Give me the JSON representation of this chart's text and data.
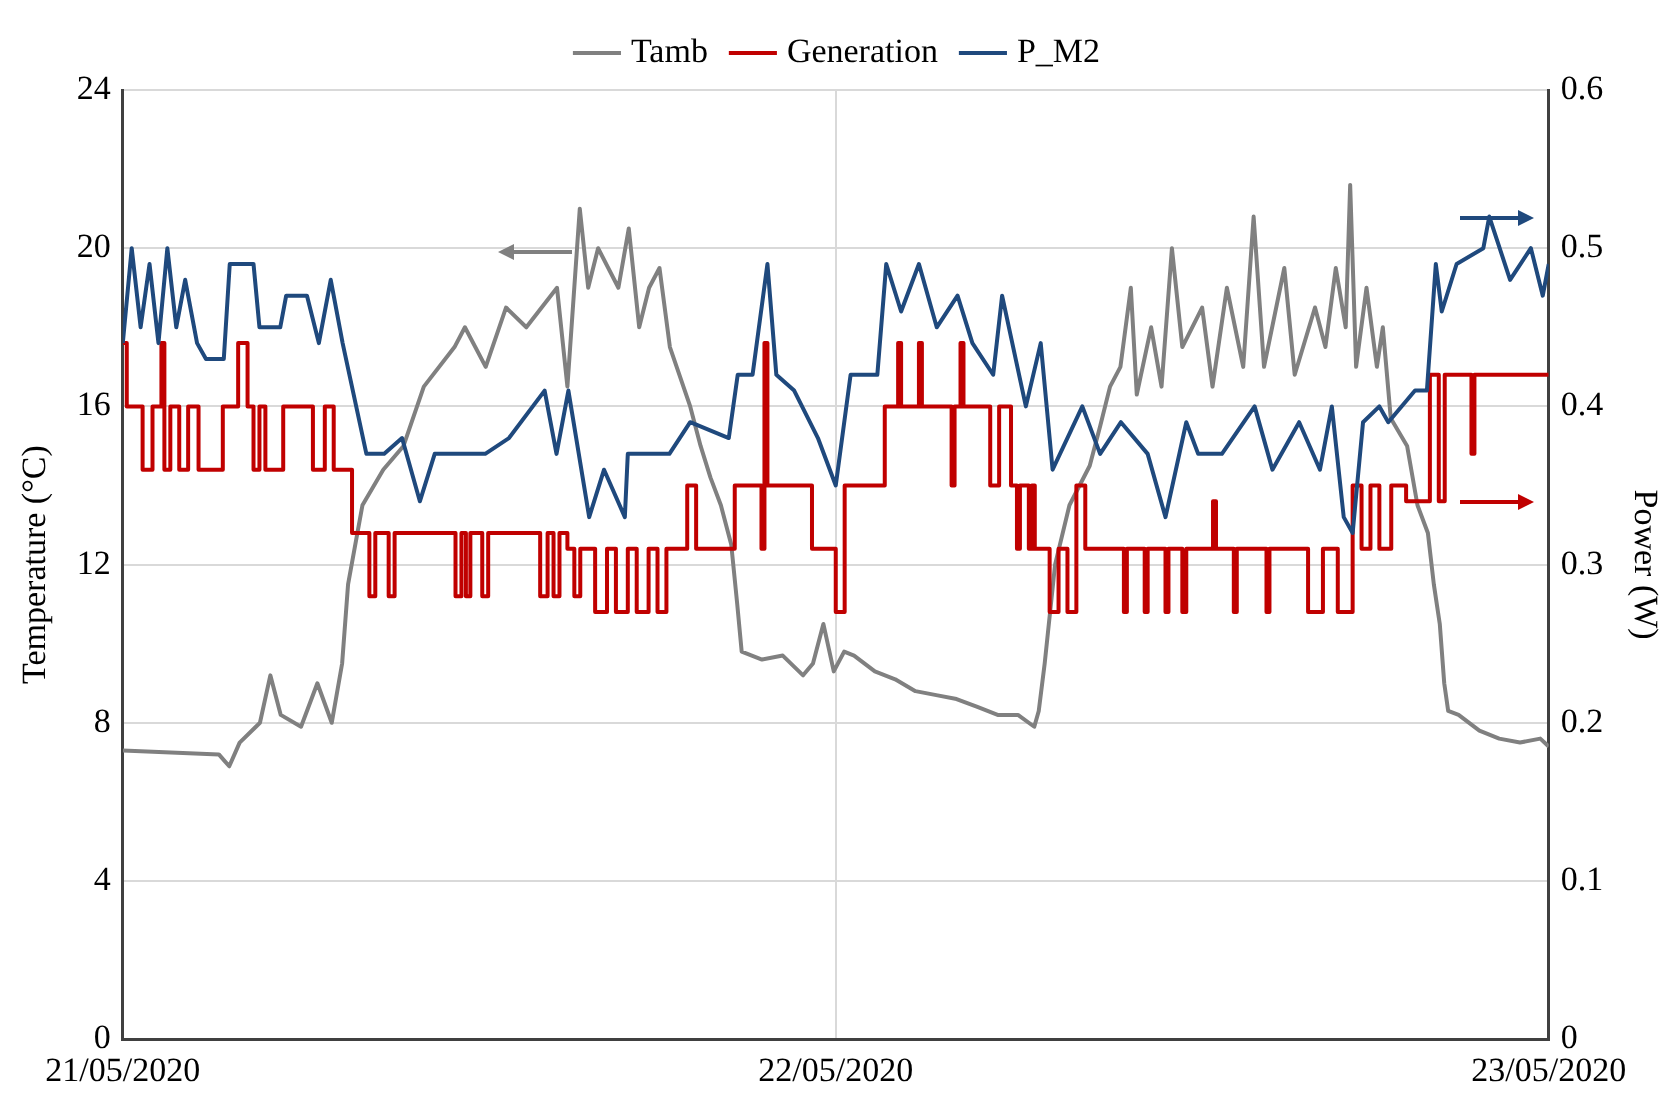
{
  "chart_data": {
    "type": "line",
    "ylabel": "Temperature (°C)",
    "y2label": "Power (W)",
    "legend": "top",
    "grid": true,
    "marker": "none",
    "line_style": "solid",
    "xlim": [
      "2020-05-21",
      "2020-05-23"
    ],
    "xticks": [
      {
        "value": "2020-05-21",
        "label": "21/05/2020"
      },
      {
        "value": "2020-05-22",
        "label": "22/05/2020"
      },
      {
        "value": "2020-05-23",
        "label": "23/05/2020"
      }
    ],
    "ylim": [
      0,
      24
    ],
    "yticks": [
      0,
      4,
      8,
      12,
      16,
      20,
      24
    ],
    "y2lim": [
      0,
      0.6
    ],
    "y2ticks": [
      0,
      0.1,
      0.2,
      0.3,
      0.4,
      0.5,
      0.6
    ],
    "series": [
      {
        "name": "Tamb",
        "color": "#808080",
        "type": "line",
        "x": [
          "2020-05-21T00:00",
          "2020-05-21T03:14",
          "2020-05-21T03:35",
          "2020-05-21T03:56",
          "2020-05-21T04:37",
          "2020-05-21T04:58",
          "2020-05-21T05:19",
          "2020-05-21T06:00",
          "2020-05-21T06:33",
          "2020-05-21T07:02",
          "2020-05-21T07:23",
          "2020-05-21T07:35",
          "2020-05-21T08:04",
          "2020-05-21T08:46",
          "2020-05-21T09:27",
          "2020-05-21T10:08",
          "2020-05-21T11:10",
          "2020-05-21T11:31",
          "2020-05-21T12:13",
          "2020-05-21T12:54",
          "2020-05-21T13:35",
          "2020-05-21T14:37",
          "2020-05-21T14:58",
          "2020-05-21T15:23",
          "2020-05-21T15:40",
          "2020-05-21T16:00",
          "2020-05-21T16:41",
          "2020-05-21T17:02",
          "2020-05-21T17:23",
          "2020-05-21T17:43",
          "2020-05-21T18:04",
          "2020-05-21T18:25",
          "2020-05-21T19:06",
          "2020-05-21T19:27",
          "2020-05-21T19:47",
          "2020-05-21T20:08",
          "2020-05-21T20:29",
          "2020-05-21T20:41",
          "2020-05-21T20:50",
          "2020-05-21T21:31",
          "2020-05-21T22:13",
          "2020-05-21T22:54",
          "2020-05-21T23:14",
          "2020-05-21T23:35",
          "2020-05-21T23:56",
          "2020-05-22T00:17",
          "2020-05-22T00:37",
          "2020-05-22T01:19",
          "2020-05-22T02:00",
          "2020-05-22T02:41",
          "2020-05-22T03:23",
          "2020-05-22T04:04",
          "2020-05-22T04:46",
          "2020-05-22T05:27",
          "2020-05-22T06:08",
          "2020-05-22T06:41",
          "2020-05-22T06:50",
          "2020-05-22T07:02",
          "2020-05-22T07:23",
          "2020-05-22T07:52",
          "2020-05-22T08:33",
          "2020-05-22T08:54",
          "2020-05-22T09:14",
          "2020-05-22T09:35",
          "2020-05-22T09:56",
          "2020-05-22T10:08",
          "2020-05-22T10:37",
          "2020-05-22T10:58",
          "2020-05-22T11:19",
          "2020-05-22T11:40",
          "2020-05-22T12:20",
          "2020-05-22T12:41",
          "2020-05-22T13:10",
          "2020-05-22T13:43",
          "2020-05-22T14:04",
          "2020-05-22T14:25",
          "2020-05-22T15:06",
          "2020-05-22T15:27",
          "2020-05-22T16:08",
          "2020-05-22T16:29",
          "2020-05-22T16:50",
          "2020-05-22T17:10",
          "2020-05-22T17:19",
          "2020-05-22T17:31",
          "2020-05-22T17:52",
          "2020-05-22T18:13",
          "2020-05-22T18:25",
          "2020-05-22T18:41",
          "2020-05-22T19:14",
          "2020-05-22T19:35",
          "2020-05-22T19:56",
          "2020-05-22T20:08",
          "2020-05-22T20:20",
          "2020-05-22T20:29",
          "2020-05-22T20:37",
          "2020-05-22T20:58",
          "2020-05-22T21:40",
          "2020-05-22T22:20",
          "2020-05-22T23:02",
          "2020-05-22T23:43",
          "2020-05-23T00:00"
        ],
        "values": [
          7.3,
          7.2,
          6.9,
          7.5,
          8.0,
          9.2,
          8.2,
          7.9,
          9.0,
          8.0,
          9.5,
          11.5,
          13.5,
          14.4,
          15.0,
          16.5,
          17.5,
          18.0,
          17.0,
          18.5,
          18.0,
          19.0,
          16.5,
          21.0,
          19.0,
          20.0,
          19.0,
          20.5,
          18.0,
          19.0,
          19.5,
          17.5,
          16.0,
          15.0,
          14.2,
          13.5,
          12.5,
          11.0,
          9.8,
          9.6,
          9.7,
          9.2,
          9.5,
          10.5,
          9.3,
          9.8,
          9.7,
          9.3,
          9.1,
          8.8,
          8.7,
          8.6,
          8.4,
          8.2,
          8.2,
          7.9,
          8.3,
          9.5,
          12.0,
          13.5,
          14.5,
          15.5,
          16.5,
          17.0,
          19.0,
          16.3,
          18.0,
          16.5,
          20.0,
          17.5,
          18.5,
          16.5,
          19.0,
          17.0,
          20.8,
          17.0,
          19.5,
          16.8,
          18.5,
          17.5,
          19.5,
          18.0,
          21.6,
          17.0,
          19.0,
          17.0,
          18.0,
          15.7,
          15.0,
          13.5,
          12.8,
          11.5,
          10.5,
          9.0,
          8.3,
          8.2,
          7.8,
          7.6,
          7.5,
          7.6,
          7.4
        ]
      },
      {
        "name": "Generation",
        "color": "#c00000",
        "type": "step",
        "axis": "y2",
        "x": [
          "2020-05-21T00:00",
          "2020-05-21T00:08",
          "2020-05-21T00:40",
          "2020-05-21T01:00",
          "2020-05-21T01:18",
          "2020-05-21T01:24",
          "2020-05-21T01:36",
          "2020-05-21T01:54",
          "2020-05-21T02:12",
          "2020-05-21T02:33",
          "2020-05-21T03:22",
          "2020-05-21T03:53",
          "2020-05-21T04:12",
          "2020-05-21T04:24",
          "2020-05-21T04:36",
          "2020-05-21T04:48",
          "2020-05-21T05:24",
          "2020-05-21T06:24",
          "2020-05-21T06:48",
          "2020-05-21T07:06",
          "2020-05-21T07:43",
          "2020-05-21T08:18",
          "2020-05-21T08:30",
          "2020-05-21T08:57",
          "2020-05-21T09:09",
          "2020-05-21T11:12",
          "2020-05-21T11:24",
          "2020-05-21T11:33",
          "2020-05-21T11:42",
          "2020-05-21T12:06",
          "2020-05-21T12:18",
          "2020-05-21T14:03",
          "2020-05-21T14:18",
          "2020-05-21T14:30",
          "2020-05-21T14:42",
          "2020-05-21T14:58",
          "2020-05-21T15:12",
          "2020-05-21T15:24",
          "2020-05-21T15:54",
          "2020-05-21T16:18",
          "2020-05-21T16:36",
          "2020-05-21T17:00",
          "2020-05-21T17:18",
          "2020-05-21T17:42",
          "2020-05-21T18:00",
          "2020-05-21T18:18",
          "2020-05-21T19:00",
          "2020-05-21T19:18",
          "2020-05-21T20:36",
          "2020-05-21T21:30",
          "2020-05-21T21:36",
          "2020-05-21T21:42",
          "2020-05-21T23:12",
          "2020-05-22T00:00",
          "2020-05-22T00:18",
          "2020-05-22T01:39",
          "2020-05-22T02:06",
          "2020-05-22T02:12",
          "2020-05-22T02:48",
          "2020-05-22T02:54",
          "2020-05-22T03:54",
          "2020-05-22T04:00",
          "2020-05-22T04:12",
          "2020-05-22T04:18",
          "2020-05-22T05:12",
          "2020-05-22T05:30",
          "2020-05-22T05:54",
          "2020-05-22T06:06",
          "2020-05-22T06:12",
          "2020-05-22T06:30",
          "2020-05-22T06:36",
          "2020-05-22T06:42",
          "2020-05-22T07:12",
          "2020-05-22T07:30",
          "2020-05-22T07:48",
          "2020-05-22T08:06",
          "2020-05-22T08:24",
          "2020-05-22T09:42",
          "2020-05-22T09:48",
          "2020-05-22T10:24",
          "2020-05-22T10:30",
          "2020-05-22T11:06",
          "2020-05-22T11:12",
          "2020-05-22T11:40",
          "2020-05-22T11:48",
          "2020-05-22T12:42",
          "2020-05-22T12:48",
          "2020-05-22T13:24",
          "2020-05-22T13:30",
          "2020-05-22T14:30",
          "2020-05-22T14:36",
          "2020-05-22T15:54",
          "2020-05-22T16:24",
          "2020-05-22T16:54",
          "2020-05-22T17:24",
          "2020-05-22T17:42",
          "2020-05-22T18:00",
          "2020-05-22T18:18",
          "2020-05-22T18:42",
          "2020-05-22T19:12",
          "2020-05-22T20:00",
          "2020-05-22T20:18",
          "2020-05-22T20:30",
          "2020-05-22T20:48",
          "2020-05-22T21:24",
          "2020-05-22T21:30",
          "2020-05-23T00:00"
        ],
        "values": [
          0.44,
          0.4,
          0.36,
          0.4,
          0.44,
          0.36,
          0.4,
          0.36,
          0.4,
          0.36,
          0.4,
          0.44,
          0.4,
          0.36,
          0.4,
          0.36,
          0.4,
          0.36,
          0.4,
          0.36,
          0.32,
          0.28,
          0.32,
          0.28,
          0.32,
          0.28,
          0.32,
          0.28,
          0.32,
          0.28,
          0.32,
          0.28,
          0.32,
          0.28,
          0.32,
          0.31,
          0.28,
          0.31,
          0.27,
          0.31,
          0.27,
          0.31,
          0.27,
          0.31,
          0.27,
          0.31,
          0.35,
          0.31,
          0.35,
          0.31,
          0.44,
          0.35,
          0.31,
          0.27,
          0.35,
          0.4,
          0.44,
          0.4,
          0.44,
          0.4,
          0.35,
          0.4,
          0.44,
          0.4,
          0.35,
          0.4,
          0.35,
          0.31,
          0.35,
          0.31,
          0.35,
          0.31,
          0.27,
          0.31,
          0.27,
          0.35,
          0.31,
          0.27,
          0.31,
          0.27,
          0.31,
          0.27,
          0.31,
          0.27,
          0.31,
          0.34,
          0.31,
          0.27,
          0.31,
          0.27,
          0.31,
          0.27,
          0.31,
          0.27,
          0.35,
          0.31,
          0.35,
          0.31,
          0.35,
          0.34,
          0.42,
          0.34,
          0.42,
          0.42,
          0.37,
          0.42,
          0.42
        ]
      },
      {
        "name": "P_M2",
        "color": "#1f497d",
        "type": "line",
        "axis": "y2",
        "x": [
          "2020-05-21T00:00",
          "2020-05-21T00:18",
          "2020-05-21T00:36",
          "2020-05-21T00:54",
          "2020-05-21T01:12",
          "2020-05-21T01:30",
          "2020-05-21T01:48",
          "2020-05-21T02:06",
          "2020-05-21T02:30",
          "2020-05-21T02:48",
          "2020-05-21T03:24",
          "2020-05-21T03:36",
          "2020-05-21T04:24",
          "2020-05-21T04:36",
          "2020-05-21T05:18",
          "2020-05-21T05:30",
          "2020-05-21T06:12",
          "2020-05-21T06:36",
          "2020-05-21T07:00",
          "2020-05-21T07:24",
          "2020-05-21T08:12",
          "2020-05-21T08:48",
          "2020-05-21T09:24",
          "2020-05-21T10:00",
          "2020-05-21T10:30",
          "2020-05-21T11:12",
          "2020-05-21T12:12",
          "2020-05-21T13:00",
          "2020-05-21T14:12",
          "2020-05-21T14:36",
          "2020-05-21T15:00",
          "2020-05-21T15:42",
          "2020-05-21T16:12",
          "2020-05-21T16:54",
          "2020-05-21T17:00",
          "2020-05-21T18:24",
          "2020-05-21T19:06",
          "2020-05-21T20:24",
          "2020-05-21T20:42",
          "2020-05-21T21:12",
          "2020-05-21T21:42",
          "2020-05-21T22:00",
          "2020-05-21T22:36",
          "2020-05-21T23:24",
          "2020-05-22T00:00",
          "2020-05-22T00:30",
          "2020-05-22T01:24",
          "2020-05-22T01:42",
          "2020-05-22T02:12",
          "2020-05-22T02:48",
          "2020-05-22T03:24",
          "2020-05-22T04:06",
          "2020-05-22T04:36",
          "2020-05-22T05:18",
          "2020-05-22T05:36",
          "2020-05-22T06:24",
          "2020-05-22T06:54",
          "2020-05-22T07:18",
          "2020-05-22T08:18",
          "2020-05-22T08:54",
          "2020-05-22T09:36",
          "2020-05-22T10:30",
          "2020-05-22T11:06",
          "2020-05-22T11:48",
          "2020-05-22T12:12",
          "2020-05-22T13:00",
          "2020-05-22T14:06",
          "2020-05-22T14:42",
          "2020-05-22T15:36",
          "2020-05-22T16:18",
          "2020-05-22T16:42",
          "2020-05-22T17:06",
          "2020-05-22T17:24",
          "2020-05-22T17:45",
          "2020-05-22T18:18",
          "2020-05-22T18:36",
          "2020-05-22T19:30",
          "2020-05-22T19:54",
          "2020-05-22T20:12",
          "2020-05-22T20:24",
          "2020-05-22T20:54",
          "2020-05-22T21:48",
          "2020-05-22T22:00",
          "2020-05-22T22:42",
          "2020-05-22T23:24",
          "2020-05-22T23:48",
          "2020-05-23T00:00"
        ],
        "values": [
          0.44,
          0.5,
          0.45,
          0.49,
          0.44,
          0.5,
          0.45,
          0.48,
          0.44,
          0.43,
          0.43,
          0.49,
          0.49,
          0.45,
          0.45,
          0.47,
          0.47,
          0.44,
          0.48,
          0.44,
          0.37,
          0.37,
          0.38,
          0.34,
          0.37,
          0.37,
          0.37,
          0.38,
          0.41,
          0.37,
          0.41,
          0.33,
          0.36,
          0.33,
          0.37,
          0.37,
          0.39,
          0.38,
          0.42,
          0.42,
          0.49,
          0.42,
          0.41,
          0.38,
          0.35,
          0.42,
          0.42,
          0.49,
          0.46,
          0.49,
          0.45,
          0.47,
          0.44,
          0.42,
          0.47,
          0.4,
          0.44,
          0.36,
          0.4,
          0.37,
          0.39,
          0.37,
          0.33,
          0.39,
          0.37,
          0.37,
          0.4,
          0.36,
          0.39,
          0.36,
          0.4,
          0.33,
          0.32,
          0.39,
          0.4,
          0.39,
          0.41,
          0.41,
          0.49,
          0.46,
          0.49,
          0.5,
          0.52,
          0.48,
          0.5,
          0.47,
          0.49
        ]
      }
    ]
  }
}
